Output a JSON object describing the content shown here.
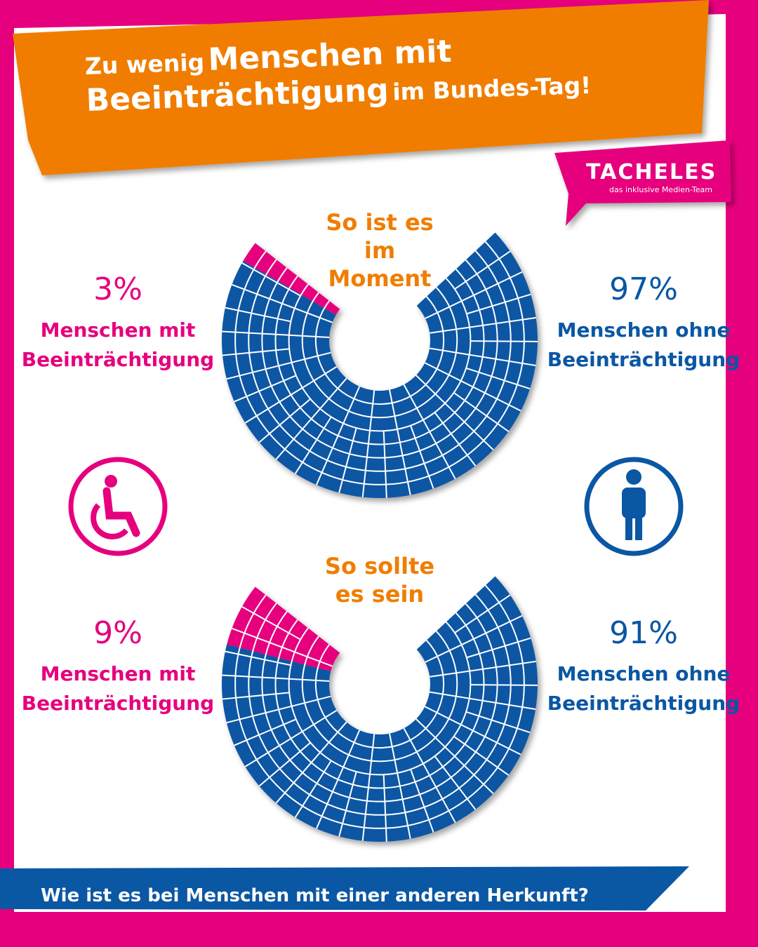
{
  "header": {
    "title_parts": [
      "Zu wenig",
      "Menschen mit",
      "Beeinträchtigung",
      "im Bundes-Tag!"
    ]
  },
  "logo": {
    "name": "TACHELES",
    "tagline": "das inklusive Medien-Team"
  },
  "chart_data": [
    {
      "type": "parliament",
      "title": "So ist es im Moment",
      "categories": [
        "Menschen mit Beeinträchtigung",
        "Menschen ohne Beeinträchtigung"
      ],
      "values": [
        3,
        97
      ],
      "value_labels": [
        "3%",
        "97%"
      ],
      "colors": [
        "#e6007e",
        "#0a57a4"
      ]
    },
    {
      "type": "parliament",
      "title": "So sollte es sein",
      "categories": [
        "Menschen mit Beeinträchtigung",
        "Menschen ohne Beeinträchtigung"
      ],
      "values": [
        9,
        91
      ],
      "value_labels": [
        "9%",
        "91%"
      ],
      "colors": [
        "#e6007e",
        "#0a57a4"
      ]
    }
  ],
  "footer": {
    "text": "Wie ist es bei Menschen mit einer anderen Herkunft?"
  }
}
